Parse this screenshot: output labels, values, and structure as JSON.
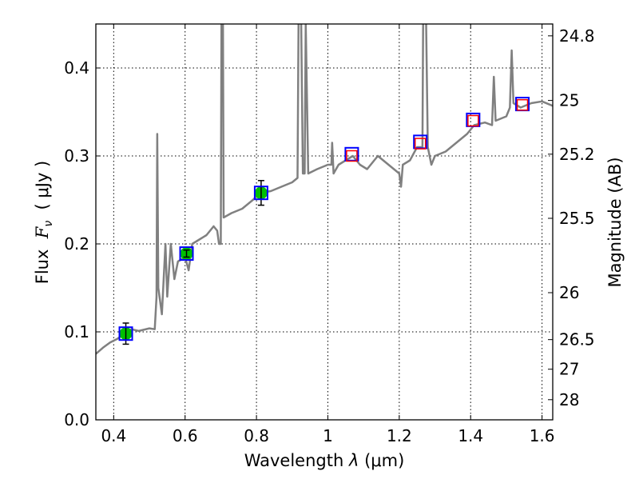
{
  "chart_data": {
    "type": "line",
    "title": "",
    "xlabel": "Wavelength  λ (μm)",
    "ylabel": "Flux  F_ν  ( μJy )",
    "ylabel_parts": {
      "prefix": "Flux  ",
      "var": "F",
      "sub": "ν",
      "unit": "  ( μJy )"
    },
    "xlabel_parts": {
      "prefix": "Wavelength  ",
      "var": "λ",
      "unit": " (μm)"
    },
    "y2label": "Magnitude (AB)",
    "xlim": [
      0.35,
      1.63
    ],
    "ylim": [
      0.0,
      0.45
    ],
    "grid": true,
    "xticks": [
      0.4,
      0.6,
      0.8,
      1.0,
      1.2,
      1.4,
      1.6
    ],
    "xtick_labels": [
      "0.4",
      "0.6",
      "0.8",
      "1",
      "1.2",
      "1.4",
      "1.6"
    ],
    "yticks": [
      0.0,
      0.1,
      0.2,
      0.3,
      0.4
    ],
    "ytick_labels": [
      "0.0",
      "0.1",
      "0.2",
      "0.3",
      "0.4"
    ],
    "y2ticks": [
      24.8,
      25,
      25.2,
      25.5,
      26,
      26.5,
      27,
      28
    ],
    "y2tick_labels": [
      "24.8",
      "25",
      "25.2",
      "25.5",
      "26",
      "26.5",
      "27",
      "28"
    ],
    "colors": {
      "spectrum": "#808080",
      "observed": "#00c000",
      "model_blue": "#0000ff",
      "model_red": "#ff0000"
    },
    "spectrum": [
      [
        0.35,
        0.075
      ],
      [
        0.37,
        0.082
      ],
      [
        0.39,
        0.088
      ],
      [
        0.41,
        0.092
      ],
      [
        0.43,
        0.098
      ],
      [
        0.45,
        0.103
      ],
      [
        0.47,
        0.101
      ],
      [
        0.5,
        0.104
      ],
      [
        0.515,
        0.103
      ],
      [
        0.52,
        0.14
      ],
      [
        0.522,
        0.325
      ],
      [
        0.525,
        0.15
      ],
      [
        0.535,
        0.12
      ],
      [
        0.545,
        0.2
      ],
      [
        0.55,
        0.14
      ],
      [
        0.56,
        0.2
      ],
      [
        0.57,
        0.16
      ],
      [
        0.58,
        0.18
      ],
      [
        0.6,
        0.185
      ],
      [
        0.61,
        0.17
      ],
      [
        0.62,
        0.2
      ],
      [
        0.64,
        0.205
      ],
      [
        0.66,
        0.21
      ],
      [
        0.68,
        0.22
      ],
      [
        0.69,
        0.215
      ],
      [
        0.695,
        0.2
      ],
      [
        0.7,
        0.2
      ],
      [
        0.702,
        0.46
      ],
      [
        0.706,
        0.46
      ],
      [
        0.708,
        0.23
      ],
      [
        0.73,
        0.235
      ],
      [
        0.76,
        0.24
      ],
      [
        0.79,
        0.25
      ],
      [
        0.81,
        0.258
      ],
      [
        0.84,
        0.26
      ],
      [
        0.87,
        0.265
      ],
      [
        0.9,
        0.27
      ],
      [
        0.915,
        0.275
      ],
      [
        0.918,
        0.46
      ],
      [
        0.925,
        0.46
      ],
      [
        0.93,
        0.28
      ],
      [
        0.935,
        0.28
      ],
      [
        0.938,
        0.45
      ],
      [
        0.945,
        0.28
      ],
      [
        0.97,
        0.285
      ],
      [
        1.0,
        0.29
      ],
      [
        1.01,
        0.29
      ],
      [
        1.012,
        0.315
      ],
      [
        1.016,
        0.28
      ],
      [
        1.03,
        0.29
      ],
      [
        1.05,
        0.295
      ],
      [
        1.07,
        0.3
      ],
      [
        1.09,
        0.29
      ],
      [
        1.11,
        0.285
      ],
      [
        1.14,
        0.3
      ],
      [
        1.17,
        0.29
      ],
      [
        1.2,
        0.28
      ],
      [
        1.205,
        0.265
      ],
      [
        1.21,
        0.29
      ],
      [
        1.23,
        0.295
      ],
      [
        1.25,
        0.31
      ],
      [
        1.265,
        0.31
      ],
      [
        1.267,
        0.46
      ],
      [
        1.275,
        0.46
      ],
      [
        1.28,
        0.31
      ],
      [
        1.29,
        0.29
      ],
      [
        1.3,
        0.3
      ],
      [
        1.33,
        0.305
      ],
      [
        1.36,
        0.315
      ],
      [
        1.39,
        0.325
      ],
      [
        1.41,
        0.335
      ],
      [
        1.44,
        0.338
      ],
      [
        1.46,
        0.335
      ],
      [
        1.465,
        0.39
      ],
      [
        1.47,
        0.34
      ],
      [
        1.5,
        0.345
      ],
      [
        1.51,
        0.355
      ],
      [
        1.515,
        0.42
      ],
      [
        1.52,
        0.36
      ],
      [
        1.54,
        0.355
      ],
      [
        1.57,
        0.36
      ],
      [
        1.6,
        0.362
      ],
      [
        1.63,
        0.357
      ]
    ],
    "observed": [
      {
        "x": 0.434,
        "y": 0.098,
        "err": 0.012
      },
      {
        "x": 0.604,
        "y": 0.189,
        "err": 0.004
      },
      {
        "x": 0.813,
        "y": 0.258,
        "err": 0.014
      }
    ],
    "model_blue": [
      [
        0.434,
        0.098
      ],
      [
        0.604,
        0.189
      ],
      [
        0.813,
        0.258
      ],
      [
        1.067,
        0.302
      ],
      [
        1.259,
        0.316
      ],
      [
        1.407,
        0.341
      ],
      [
        1.545,
        0.359
      ]
    ],
    "model_red": [
      [
        1.067,
        0.3
      ],
      [
        1.259,
        0.314
      ],
      [
        1.407,
        0.34
      ],
      [
        1.545,
        0.358
      ]
    ]
  }
}
